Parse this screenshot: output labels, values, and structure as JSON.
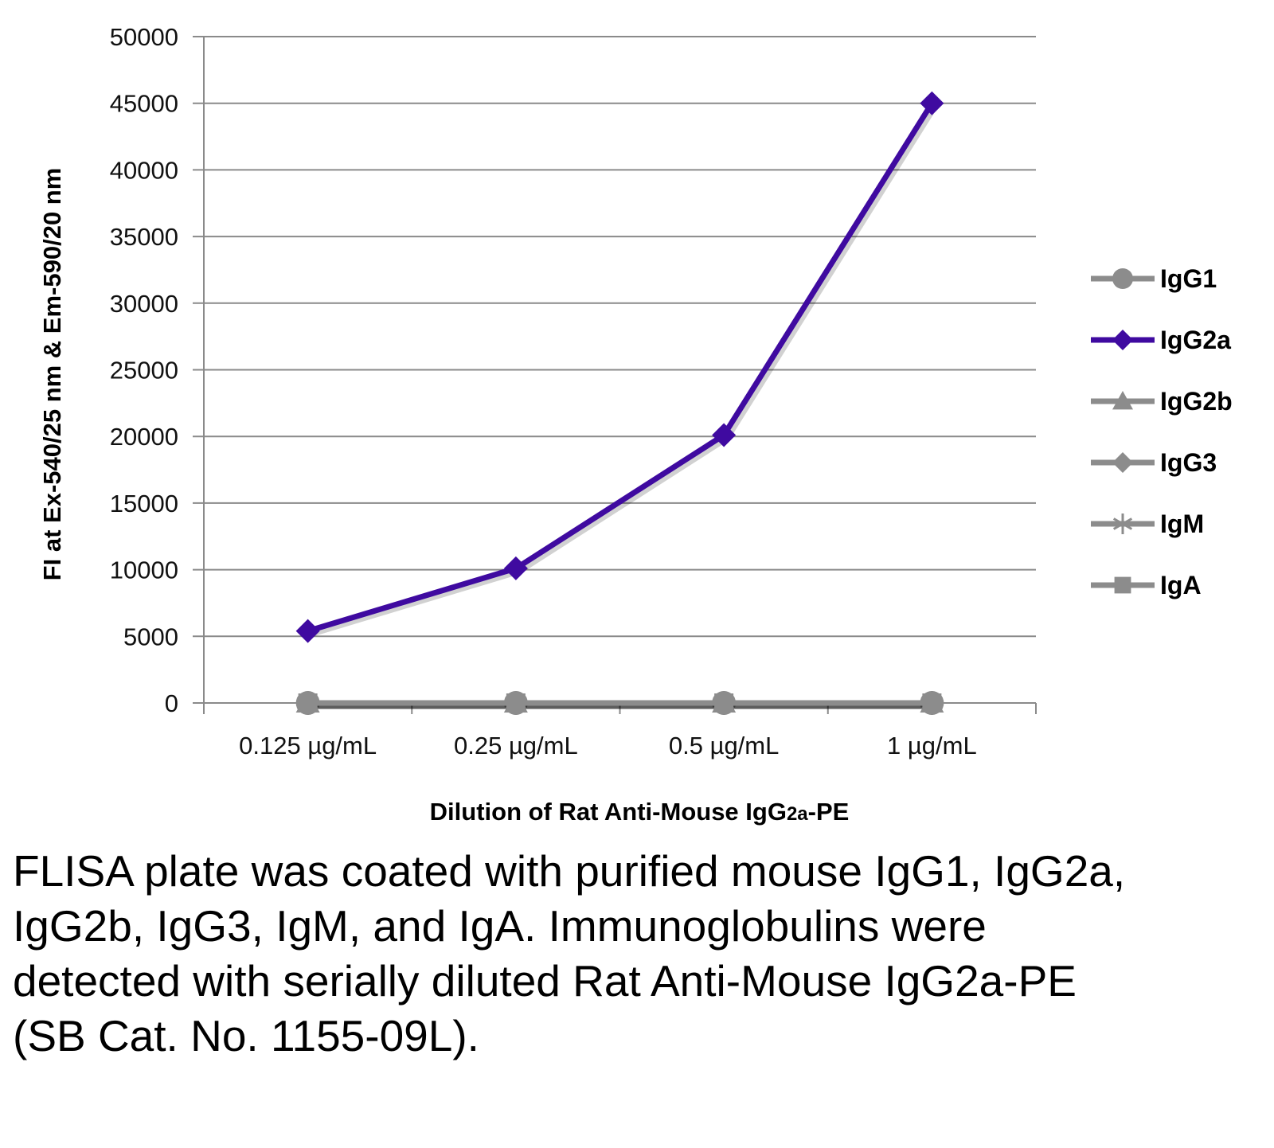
{
  "chart_data": {
    "type": "line",
    "categories": [
      "0.125 µg/mL",
      "0.25 µg/mL",
      "0.5 µg/mL",
      "1 µg/mL"
    ],
    "series": [
      {
        "name": "IgG1",
        "values": [
          0,
          0,
          0,
          0
        ],
        "color": "#8c8c8c",
        "marker": "circle"
      },
      {
        "name": "IgG2a",
        "values": [
          5400,
          10100,
          20100,
          45000
        ],
        "color": "#3f0aa0",
        "marker": "diamond"
      },
      {
        "name": "IgG2b",
        "values": [
          0,
          0,
          0,
          0
        ],
        "color": "#8c8c8c",
        "marker": "triangle"
      },
      {
        "name": "IgG3",
        "values": [
          0,
          0,
          0,
          0
        ],
        "color": "#8c8c8c",
        "marker": "diamond"
      },
      {
        "name": "IgM",
        "values": [
          0,
          0,
          0,
          0
        ],
        "color": "#8c8c8c",
        "marker": "asterisk"
      },
      {
        "name": "IgA",
        "values": [
          0,
          0,
          0,
          0
        ],
        "color": "#8c8c8c",
        "marker": "square"
      }
    ],
    "xlabel": "Dilution of Rat Anti-Mouse IgG",
    "xlabel_sub": "2a",
    "xlabel_suffix": "-PE",
    "ylabel": "FI at Ex-540/25 nm & Em-590/20 nm",
    "ylim": [
      0,
      50000
    ],
    "yticks": [
      0,
      5000,
      10000,
      15000,
      20000,
      25000,
      30000,
      35000,
      40000,
      45000,
      50000
    ],
    "grid": true,
    "legend": "right"
  },
  "caption": "FLISA plate was coated with purified mouse IgG1, IgG2a, IgG2b, IgG3, IgM, and IgA. Immunoglobulins were detected with serially diluted Rat Anti-Mouse IgG2a-PE (SB Cat. No. 1155-09L)."
}
